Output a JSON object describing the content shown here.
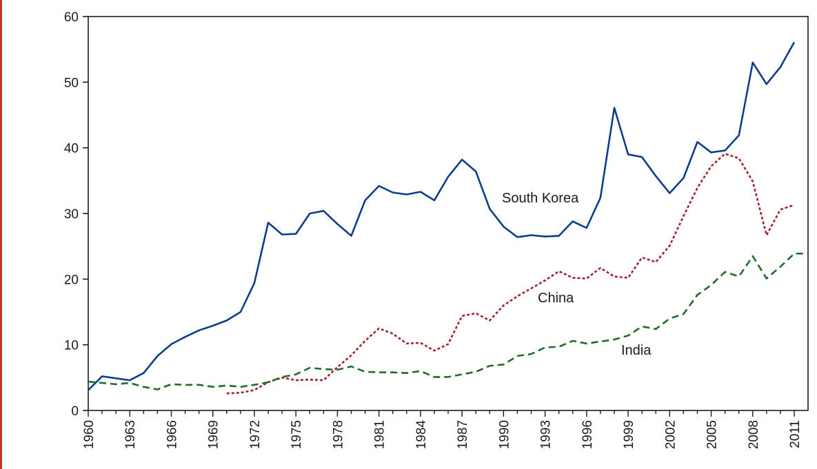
{
  "colors": {
    "frame_rule": "#c0392b",
    "axis": "#1a1a1a",
    "south_korea": "#0b3d8c",
    "china": "#a3222a",
    "india": "#1e6b2a"
  },
  "chart_data": {
    "type": "line",
    "title": "",
    "xlabel": "",
    "ylabel": "",
    "xlim": [
      1960,
      2012
    ],
    "ylim": [
      0,
      60
    ],
    "yticks": [
      0,
      10,
      20,
      30,
      40,
      50,
      60
    ],
    "xticks": [
      1960,
      1963,
      1966,
      1969,
      1972,
      1975,
      1978,
      1981,
      1984,
      1987,
      1990,
      1993,
      1996,
      1999,
      2002,
      2005,
      2008,
      2011
    ],
    "grid": false,
    "legend": "none (series labeled directly on the plot)",
    "series": [
      {
        "name": "South Korea",
        "style": "solid",
        "x": [
          1960,
          1961,
          1962,
          1963,
          1964,
          1965,
          1966,
          1967,
          1968,
          1969,
          1970,
          1971,
          1972,
          1973,
          1974,
          1975,
          1976,
          1977,
          1978,
          1979,
          1980,
          1981,
          1982,
          1983,
          1984,
          1985,
          1986,
          1987,
          1988,
          1989,
          1990,
          1991,
          1992,
          1993,
          1994,
          1995,
          1996,
          1997,
          1998,
          1999,
          2000,
          2001,
          2002,
          2003,
          2004,
          2005,
          2006,
          2007,
          2008,
          2009,
          2010,
          2011
        ],
        "values": [
          3.1,
          5.2,
          4.9,
          4.6,
          5.7,
          8.3,
          10.1,
          11.2,
          12.2,
          12.9,
          13.7,
          15.0,
          19.4,
          28.6,
          26.8,
          26.9,
          30.0,
          30.4,
          28.4,
          26.6,
          32.0,
          34.2,
          33.2,
          32.9,
          33.3,
          32.0,
          35.6,
          38.2,
          36.4,
          30.7,
          28.0,
          26.4,
          26.7,
          26.5,
          26.6,
          28.8,
          27.8,
          32.4,
          46.1,
          39.0,
          38.6,
          35.7,
          33.1,
          35.4,
          40.9,
          39.3,
          39.6,
          41.9,
          53.0,
          49.7,
          52.3,
          56.1
        ]
      },
      {
        "name": "China",
        "style": "dotted",
        "x": [
          1970,
          1971,
          1972,
          1973,
          1974,
          1975,
          1976,
          1977,
          1978,
          1979,
          1980,
          1981,
          1982,
          1983,
          1984,
          1985,
          1986,
          1987,
          1988,
          1989,
          1990,
          1991,
          1992,
          1993,
          1994,
          1995,
          1996,
          1997,
          1998,
          1999,
          2000,
          2001,
          2002,
          2003,
          2004,
          2005,
          2006,
          2007,
          2008,
          2009,
          2010,
          2011
        ],
        "values": [
          2.6,
          2.7,
          3.1,
          4.3,
          5.0,
          4.6,
          4.7,
          4.6,
          6.6,
          8.4,
          10.6,
          12.5,
          11.7,
          10.2,
          10.3,
          9.1,
          10.1,
          14.4,
          14.8,
          13.7,
          16.0,
          17.4,
          18.6,
          19.8,
          21.2,
          20.2,
          20.1,
          21.7,
          20.4,
          20.2,
          23.3,
          22.6,
          25.1,
          29.6,
          33.9,
          37.2,
          39.1,
          38.4,
          34.9,
          26.7,
          30.6,
          31.3
        ]
      },
      {
        "name": "India",
        "style": "dashed",
        "x": [
          1960,
          1961,
          1962,
          1963,
          1964,
          1965,
          1966,
          1967,
          1968,
          1969,
          1970,
          1971,
          1972,
          1973,
          1974,
          1975,
          1976,
          1977,
          1978,
          1979,
          1980,
          1981,
          1982,
          1983,
          1984,
          1985,
          1986,
          1987,
          1988,
          1989,
          1990,
          1991,
          1992,
          1993,
          1994,
          1995,
          1996,
          1997,
          1998,
          1999,
          2000,
          2001,
          2002,
          2003,
          2004,
          2005,
          2006,
          2007,
          2008,
          2009,
          2010,
          2011,
          2012
        ],
        "values": [
          4.4,
          4.2,
          4.0,
          4.2,
          3.6,
          3.2,
          4.0,
          3.9,
          3.9,
          3.6,
          3.8,
          3.6,
          3.9,
          4.3,
          5.1,
          5.5,
          6.5,
          6.3,
          6.2,
          6.7,
          5.9,
          5.8,
          5.8,
          5.7,
          6.0,
          5.1,
          5.1,
          5.5,
          5.9,
          6.8,
          7.0,
          8.3,
          8.6,
          9.6,
          9.7,
          10.6,
          10.2,
          10.5,
          10.8,
          11.4,
          12.8,
          12.4,
          14.0,
          14.7,
          17.6,
          19.1,
          21.1,
          20.4,
          23.5,
          20.1,
          21.9,
          23.9,
          23.9
        ]
      }
    ]
  }
}
